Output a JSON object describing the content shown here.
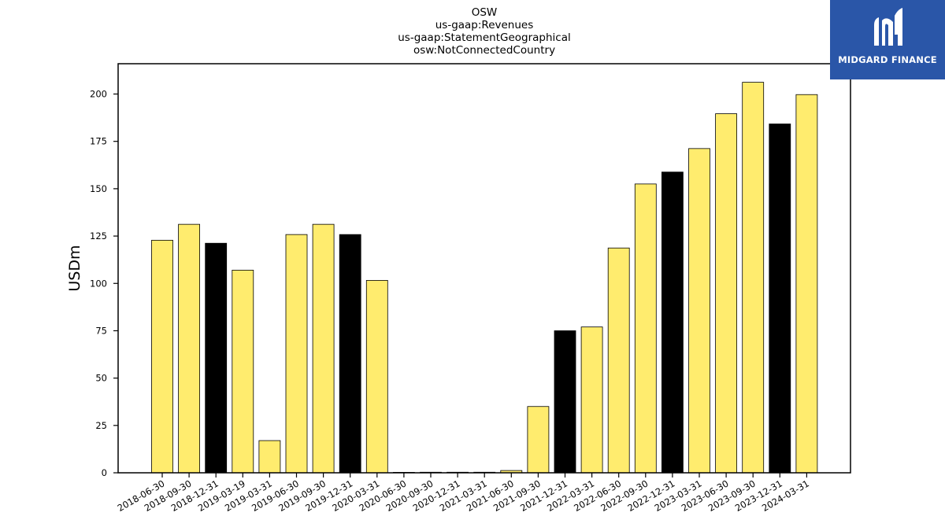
{
  "logo": {
    "text": "MIDGARD FINANCE",
    "icon": "midgard-logo-icon",
    "background": "#2a56a8"
  },
  "chart_data": {
    "type": "bar",
    "title_lines": [
      "OSW",
      "us-gaap:Revenues",
      "us-gaap:StatementGeographical",
      "osw:NotConnectedCountry"
    ],
    "xlabel": "",
    "ylabel": "USDm",
    "ylim": [
      0,
      216
    ],
    "yticks": [
      0,
      25,
      50,
      75,
      100,
      125,
      150,
      175,
      200
    ],
    "grid": false,
    "colors": {
      "quarter": "#ffec6e",
      "year_end": "#000000",
      "edge": "#000000"
    },
    "categories": [
      "2018-06-30",
      "2018-09-30",
      "2018-12-31",
      "2019-03-19",
      "2019-03-31",
      "2019-06-30",
      "2019-09-30",
      "2019-12-31",
      "2020-03-31",
      "2020-06-30",
      "2020-09-30",
      "2020-12-31",
      "2021-03-31",
      "2021-06-30",
      "2021-09-30",
      "2021-12-31",
      "2022-03-31",
      "2022-06-30",
      "2022-09-30",
      "2022-12-31",
      "2023-03-31",
      "2023-06-30",
      "2023-09-30",
      "2023-12-31",
      "2024-03-31"
    ],
    "values": [
      122.8,
      131.2,
      121.2,
      107.0,
      17.0,
      125.8,
      131.2,
      125.8,
      101.6,
      0,
      0.3,
      0.3,
      0.3,
      1.2,
      35.0,
      75.0,
      77.0,
      118.7,
      152.5,
      158.8,
      171.2,
      189.6,
      206.2,
      184.2,
      199.7
    ],
    "highlight": [
      false,
      false,
      true,
      false,
      false,
      false,
      false,
      true,
      false,
      false,
      false,
      false,
      false,
      false,
      false,
      true,
      false,
      false,
      false,
      true,
      false,
      false,
      false,
      true,
      false
    ]
  }
}
